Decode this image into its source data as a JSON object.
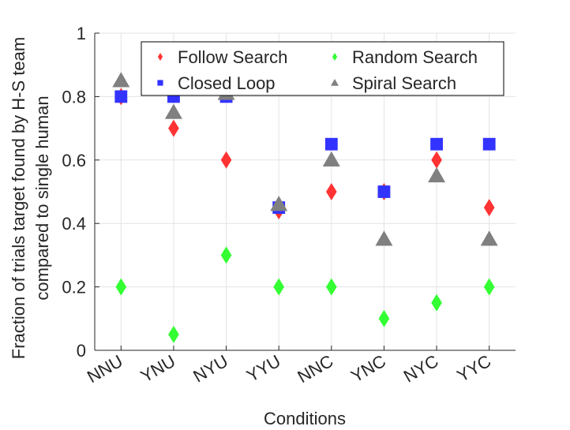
{
  "chart_data": {
    "type": "scatter",
    "title": "",
    "xlabel": "Conditions",
    "ylabel_line1": "Fraction of trials target found by H-S team",
    "ylabel_line2": "compared to single human",
    "categories": [
      "NNU",
      "YNU",
      "NYU",
      "YYU",
      "NNC",
      "YNC",
      "NYC",
      "YYC"
    ],
    "ylim": [
      0,
      1
    ],
    "yticks": [
      "0",
      "0.2",
      "0.4",
      "0.6",
      "0.8",
      "1"
    ],
    "yticks_values": [
      0,
      0.2,
      0.4,
      0.6,
      0.8,
      1
    ],
    "grid": true,
    "legend_position": "top-right",
    "series": [
      {
        "name": "Follow Search",
        "marker": "diamond",
        "color": "#ff3333",
        "values": [
          0.8,
          0.7,
          0.6,
          0.44,
          0.5,
          0.5,
          0.6,
          0.45
        ]
      },
      {
        "name": "Random Search",
        "marker": "diamond",
        "color": "#33ff33",
        "values": [
          0.2,
          0.05,
          0.3,
          0.2,
          0.2,
          0.1,
          0.15,
          0.2
        ]
      },
      {
        "name": "Closed Loop",
        "marker": "square",
        "color": "#3333ff",
        "values": [
          0.8,
          0.8,
          0.8,
          0.45,
          0.65,
          0.5,
          0.65,
          0.65
        ]
      },
      {
        "name": "Spiral Search",
        "marker": "triangle",
        "color": "#808080",
        "values": [
          0.85,
          0.75,
          0.81,
          0.46,
          0.6,
          0.35,
          0.55,
          0.35
        ]
      }
    ]
  }
}
